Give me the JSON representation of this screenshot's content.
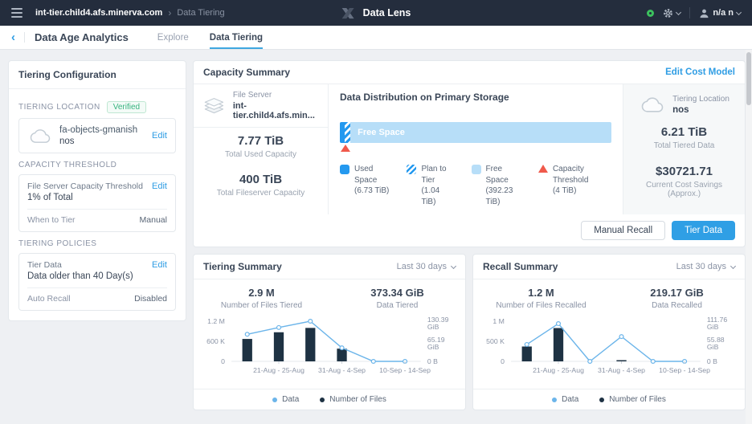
{
  "topbar": {
    "breadcrumb": {
      "host": "int-tier.child4.afs.minerva.com",
      "separator": "›",
      "page": "Data Tiering"
    },
    "app_name": "Data Lens",
    "user_name": "n/a n"
  },
  "icons": {
    "menu": "hamburger-bars",
    "app-logo": "x-mark",
    "status": "green-ring",
    "settings": "gear",
    "user": "person-silhouette",
    "dropdown": "chevron-down",
    "back": "‹",
    "tiering-location": "cloud-outline",
    "file-server": "server-stack",
    "capacity-threshold": "red-triangle"
  },
  "colors": {
    "accent_blue": "#2f9de4",
    "used_space": "#2499ef",
    "free_space": "#b7def8",
    "threshold_red": "#f0594b",
    "bar_navy": "#1e3243",
    "line_blue": "#6cb5ea",
    "status_green": "#3cc15e"
  },
  "subnav": {
    "title": "Data Age Analytics",
    "tabs": [
      {
        "label": "Explore",
        "active": false
      },
      {
        "label": "Data Tiering",
        "active": true
      }
    ]
  },
  "tiering_config": {
    "title": "Tiering Configuration",
    "location": {
      "heading": "TIERING LOCATION",
      "badge": "Verified",
      "name": "fa-objects-gmanish",
      "type": "nos",
      "edit": "Edit"
    },
    "threshold": {
      "heading": "CAPACITY THRESHOLD",
      "label": "File Server Capacity Threshold",
      "value": "1% of Total",
      "edit": "Edit",
      "when_label": "When to Tier",
      "when_value": "Manual"
    },
    "policies": {
      "heading": "TIERING POLICIES",
      "label": "Tier Data",
      "value": "Data older than 40 Day(s)",
      "edit": "Edit",
      "recall_label": "Auto Recall",
      "recall_value": "Disabled"
    }
  },
  "capacity_summary": {
    "title": "Capacity Summary",
    "edit_cost_model": "Edit Cost Model",
    "file_server": {
      "label": "File Server",
      "name": "int-tier.child4.afs.min..."
    },
    "used": {
      "value": "7.77 TiB",
      "label": "Total Used Capacity"
    },
    "total": {
      "value": "400 TiB",
      "label": "Total Fileserver Capacity"
    },
    "tiering_location": {
      "label": "Tiering Location",
      "name": "nos"
    },
    "tiered": {
      "value": "6.21 TiB",
      "label": "Total Tiered Data"
    },
    "savings": {
      "value": "$30721.71",
      "label": "Current Cost Savings (Approx.)"
    },
    "buttons": {
      "manual_recall": "Manual Recall",
      "tier_data": "Tier Data"
    }
  },
  "chart_data": [
    {
      "id": "capacity-distribution",
      "type": "stacked-bar",
      "title": "Data Distribution on Primary Storage",
      "unit": "TiB",
      "total": 400,
      "segments": [
        {
          "label": "Used Space",
          "value": 6.73,
          "legend_value": "(6.73 TiB)",
          "color": "#2499ef",
          "pattern": "solid"
        },
        {
          "label": "Plan to Tier",
          "value": 1.04,
          "legend_value": "(1.04 TiB)",
          "color": "#2499ef",
          "pattern": "striped"
        },
        {
          "label": "Free Space",
          "value": 392.23,
          "legend_value": "(392.23 TiB)",
          "color": "#b7def8",
          "pattern": "solid"
        }
      ],
      "threshold": {
        "label": "Capacity Threshold",
        "value": 4,
        "legend_value": "(4 TiB)",
        "color": "#f0594b"
      }
    },
    {
      "id": "tiering-summary",
      "type": "bar+line",
      "title": "Tiering Summary",
      "period": "Last 30 days",
      "stats": [
        {
          "value": "2.9 M",
          "label": "Number of Files Tiered"
        },
        {
          "value": "373.34 GiB",
          "label": "Data Tiered"
        }
      ],
      "x_slots": 6,
      "x_tick_labels": [
        "21-Aug - 25-Aug",
        "31-Aug - 4-Sep",
        "10-Sep - 14-Sep"
      ],
      "x_tick_positions": [
        2,
        4,
        6
      ],
      "left_axis": {
        "max": 1200000,
        "ticks": [
          "1.2 M",
          "600 K",
          "0"
        ]
      },
      "right_axis": {
        "max": 130.39,
        "unit": "GiB",
        "ticks": [
          "130.39\nGiB",
          "65.19\nGiB",
          "0 B"
        ]
      },
      "series": [
        {
          "name": "Number of Files",
          "type": "bar",
          "axis": "left",
          "color": "#1e3243",
          "values": [
            670000,
            870000,
            1000000,
            380000,
            0,
            0
          ]
        },
        {
          "name": "Data",
          "type": "line",
          "axis": "right",
          "color": "#6cb5ea",
          "values": [
            88,
            110,
            130.39,
            44,
            0,
            0
          ]
        }
      ],
      "legend": [
        {
          "label": "Data",
          "color": "#6cb5ea"
        },
        {
          "label": "Number of Files",
          "color": "#1e3243"
        }
      ]
    },
    {
      "id": "recall-summary",
      "type": "bar+line",
      "title": "Recall Summary",
      "period": "Last 30 days",
      "stats": [
        {
          "value": "1.2 M",
          "label": "Number of Files Recalled"
        },
        {
          "value": "219.17 GiB",
          "label": "Data Recalled"
        }
      ],
      "x_slots": 6,
      "x_tick_labels": [
        "21-Aug - 25-Aug",
        "31-Aug - 4-Sep",
        "10-Sep - 14-Sep"
      ],
      "x_tick_positions": [
        2,
        4,
        6
      ],
      "left_axis": {
        "max": 1000000,
        "ticks": [
          "1 M",
          "500 K",
          "0"
        ]
      },
      "right_axis": {
        "max": 111.76,
        "unit": "GiB",
        "ticks": [
          "111.76\nGiB",
          "55.88\nGiB",
          "0 B"
        ]
      },
      "series": [
        {
          "name": "Number of Files",
          "type": "bar",
          "axis": "left",
          "color": "#1e3243",
          "values": [
            370000,
            830000,
            0,
            8000,
            0,
            0
          ]
        },
        {
          "name": "Data",
          "type": "line",
          "axis": "right",
          "color": "#6cb5ea",
          "values": [
            47,
            105,
            0,
            69,
            0,
            0
          ]
        }
      ],
      "legend": [
        {
          "label": "Data",
          "color": "#6cb5ea"
        },
        {
          "label": "Number of Files",
          "color": "#1e3243"
        }
      ]
    }
  ]
}
